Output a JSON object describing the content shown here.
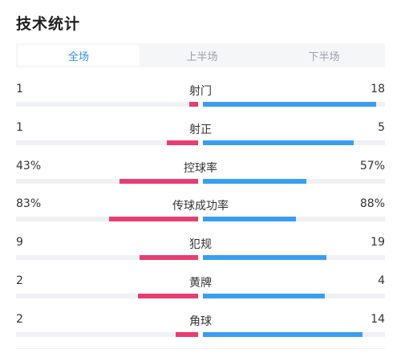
{
  "title": "技术统计",
  "tabs": [
    {
      "label": "全场",
      "active": true
    },
    {
      "label": "上半场",
      "active": false
    },
    {
      "label": "下半场",
      "active": false
    }
  ],
  "colors": {
    "home_bar": "#e83d73",
    "away_bar": "#3a9ef0",
    "active_tab": "#2f8fe6"
  },
  "stats": [
    {
      "label": "射门",
      "home": "1",
      "away": "18",
      "home_ratio": 0.05,
      "away_ratio": 0.95
    },
    {
      "label": "射正",
      "home": "1",
      "away": "5",
      "home_ratio": 0.17,
      "away_ratio": 0.83
    },
    {
      "label": "控球率",
      "home": "43%",
      "away": "57%",
      "home_ratio": 0.43,
      "away_ratio": 0.57
    },
    {
      "label": "传球成功率",
      "home": "83%",
      "away": "88%",
      "home_ratio": 0.49,
      "away_ratio": 0.51
    },
    {
      "label": "犯规",
      "home": "9",
      "away": "19",
      "home_ratio": 0.32,
      "away_ratio": 0.68
    },
    {
      "label": "黄牌",
      "home": "2",
      "away": "4",
      "home_ratio": 0.33,
      "away_ratio": 0.67
    },
    {
      "label": "角球",
      "home": "2",
      "away": "14",
      "home_ratio": 0.125,
      "away_ratio": 0.875
    }
  ]
}
